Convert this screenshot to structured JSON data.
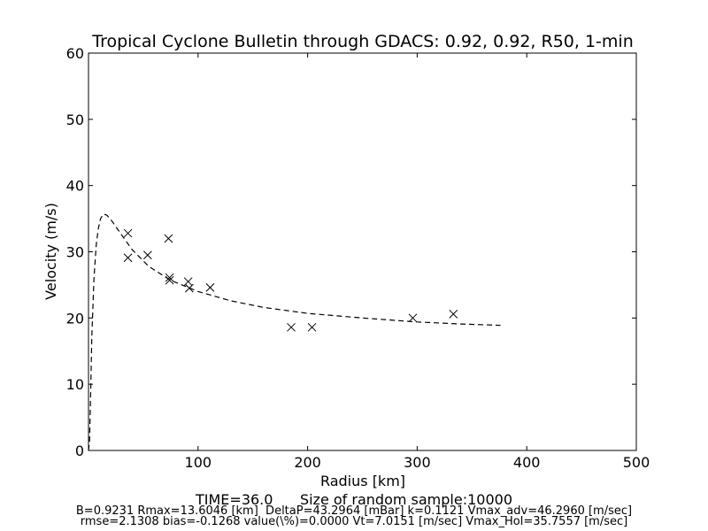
{
  "chart_data": {
    "type": "scatter",
    "title": "Tropical Cyclone Bulletin through GDACS: 0.92, 0.92, R50, 1-min",
    "xlabel": "Radius [km]",
    "ylabel": "Velocity (m/s)",
    "xlim": [
      0,
      500
    ],
    "ylim": [
      0,
      60
    ],
    "xticks": [
      100,
      200,
      300,
      400,
      500
    ],
    "yticks": [
      0,
      10,
      20,
      30,
      40,
      50,
      60
    ],
    "grid": false,
    "observations": {
      "marker": "x",
      "points": [
        {
          "x": 36,
          "y": 32.8
        },
        {
          "x": 36,
          "y": 29.1
        },
        {
          "x": 54,
          "y": 29.5
        },
        {
          "x": 73,
          "y": 32.0
        },
        {
          "x": 74,
          "y": 26.1
        },
        {
          "x": 74,
          "y": 25.7
        },
        {
          "x": 91,
          "y": 25.5
        },
        {
          "x": 92,
          "y": 24.5
        },
        {
          "x": 111,
          "y": 24.6
        },
        {
          "x": 185,
          "y": 18.6
        },
        {
          "x": 204,
          "y": 18.6
        },
        {
          "x": 296,
          "y": 20.0
        },
        {
          "x": 333,
          "y": 20.6
        }
      ]
    },
    "profile": {
      "style": "dashed",
      "points": [
        {
          "x": 0,
          "y": 0
        },
        {
          "x": 1,
          "y": 1.5
        },
        {
          "x": 2,
          "y": 9
        },
        {
          "x": 3,
          "y": 17
        },
        {
          "x": 5,
          "y": 26
        },
        {
          "x": 7,
          "y": 31
        },
        {
          "x": 9,
          "y": 33.5
        },
        {
          "x": 11,
          "y": 35
        },
        {
          "x": 13.6,
          "y": 35.7
        },
        {
          "x": 17,
          "y": 35.5
        },
        {
          "x": 22,
          "y": 34.5
        },
        {
          "x": 30,
          "y": 32.6
        },
        {
          "x": 40,
          "y": 30.3
        },
        {
          "x": 55,
          "y": 27.8
        },
        {
          "x": 75,
          "y": 25.7
        },
        {
          "x": 100,
          "y": 24.0
        },
        {
          "x": 130,
          "y": 22.6
        },
        {
          "x": 160,
          "y": 21.6
        },
        {
          "x": 200,
          "y": 20.7
        },
        {
          "x": 250,
          "y": 20.0
        },
        {
          "x": 300,
          "y": 19.4
        },
        {
          "x": 340,
          "y": 19.1
        },
        {
          "x": 376,
          "y": 18.9
        }
      ]
    }
  },
  "footer": {
    "time_line": "TIME=36.0      Size of random sample:10000",
    "stats_line1": "B=0.9231 Rmax=13.6046 [km]  DeltaP=43.2964 [mBar] k=0.1121 Vmax_adv=46.2960 [m/sec]",
    "stats_line2": "rmse=2.1308 bias=-0.1268 value(\\%)=0.0000 Vt=7.0151 [m/sec] Vmax_Hol=35.7557 [m/sec]"
  }
}
